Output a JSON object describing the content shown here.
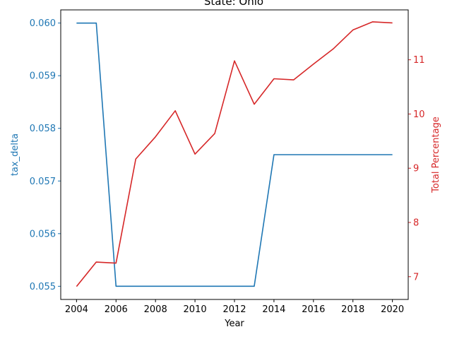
{
  "chart_data": {
    "type": "line",
    "title": "State: Ohio",
    "xlabel": "Year",
    "ylabel_left": "tax_delta",
    "ylabel_right": "Total Percentage",
    "x_ticks": [
      2004,
      2006,
      2008,
      2010,
      2012,
      2014,
      2016,
      2018,
      2020
    ],
    "y_left_ticks": [
      "0.055",
      "0.056",
      "0.057",
      "0.058",
      "0.059",
      "0.060"
    ],
    "y_right_ticks": [
      "7",
      "8",
      "9",
      "10",
      "11"
    ],
    "xlim": [
      2003.2,
      2020.8
    ],
    "ylim_left": [
      0.05475,
      0.06025
    ],
    "ylim_right": [
      6.58,
      11.92
    ],
    "grid": false,
    "colors": {
      "left": "#1f77b4",
      "right": "#d62728",
      "axis": "#000000"
    },
    "series": [
      {
        "axis": "left",
        "color": "#1f77b4",
        "x": [
          2004,
          2005,
          2006,
          2007,
          2008,
          2009,
          2010,
          2011,
          2012,
          2013,
          2014,
          2015,
          2016,
          2017,
          2018,
          2019,
          2020
        ],
        "values": [
          0.06,
          0.06,
          0.055,
          0.055,
          0.055,
          0.055,
          0.055,
          0.055,
          0.055,
          0.055,
          0.0575,
          0.0575,
          0.0575,
          0.0575,
          0.0575,
          0.0575,
          0.0575
        ]
      },
      {
        "axis": "right",
        "color": "#d62728",
        "x": [
          2004,
          2005,
          2006,
          2007,
          2008,
          2009,
          2010,
          2011,
          2012,
          2013,
          2014,
          2015,
          2016,
          2017,
          2018,
          2019,
          2020
        ],
        "values": [
          6.82,
          7.27,
          7.25,
          9.17,
          9.58,
          10.06,
          9.26,
          9.64,
          10.98,
          10.18,
          10.65,
          10.63,
          10.92,
          11.2,
          11.55,
          11.7,
          11.68
        ]
      }
    ]
  }
}
